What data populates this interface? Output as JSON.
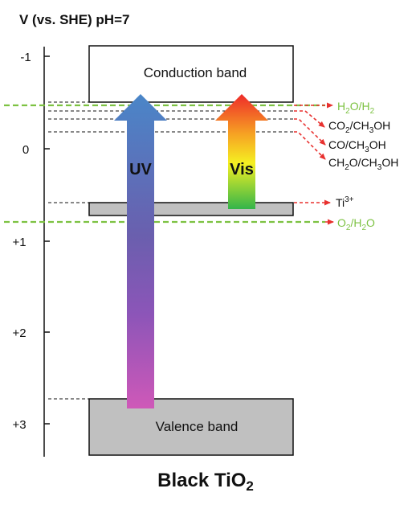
{
  "axis": {
    "label": "V (vs. SHE) pH=7",
    "ticks": [
      {
        "value": -1,
        "label": "-1"
      },
      {
        "value": 0,
        "label": "0"
      },
      {
        "value": 1,
        "label": "+1"
      },
      {
        "value": 2,
        "label": "+2"
      },
      {
        "value": 3,
        "label": "+3"
      }
    ]
  },
  "bands": {
    "conduction": {
      "label": "Conduction band"
    },
    "valence": {
      "label": "Valence band"
    }
  },
  "arrows": {
    "uv": {
      "label": "UV"
    },
    "vis": {
      "label": "Vis"
    }
  },
  "levels": {
    "h2o_h2": {
      "main": "H",
      "sub1": "2",
      "mid": "O/H",
      "sub2": "2"
    },
    "co2_ch3oh": {
      "main": "CO",
      "sub1": "2",
      "mid": "/CH",
      "sub2": "3",
      "tail": "OH"
    },
    "co_ch3oh": {
      "main": "CO/CH",
      "sub1": "3",
      "tail": "OH"
    },
    "ch2o_ch3oh": {
      "main": "CH",
      "sub1": "2",
      "mid": "O/CH",
      "sub2": "3",
      "tail": "OH"
    },
    "ti3": {
      "main": "Ti",
      "sup": "3+"
    },
    "o2_h2o": {
      "main": "O",
      "sub1": "2",
      "mid": "/H",
      "sub2": "2",
      "tail": "O"
    }
  },
  "title": {
    "main": "Black TiO",
    "sub": "2"
  },
  "colors": {
    "green": "#7dc242",
    "red": "#e8312f",
    "band_gray": "#c0c0c0"
  }
}
